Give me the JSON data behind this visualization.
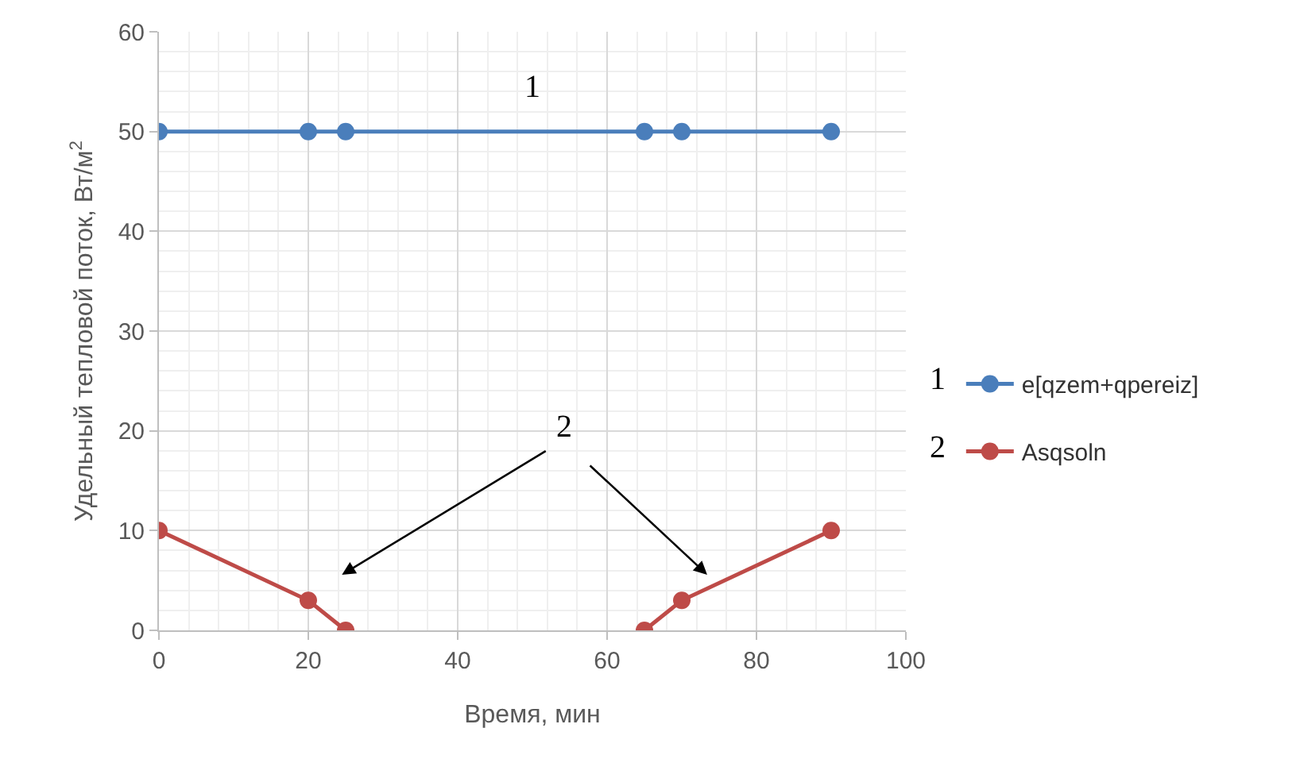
{
  "chart_data": {
    "type": "line",
    "xlabel": "Время, мин",
    "ylabel": "Удельный тепловой поток, Вт/м$^{2}$",
    "xlim": [
      0,
      100
    ],
    "xticks": [
      0,
      20,
      40,
      60,
      80,
      100
    ],
    "ylim": [
      0,
      60
    ],
    "yticks": [
      0,
      10,
      20,
      30,
      40,
      50,
      60
    ],
    "grid": true,
    "legend": "right",
    "marker": "circle",
    "line_style": "solid",
    "series": [
      {
        "name": "e[qzem+qpereiz]",
        "color": "#4a7ebb",
        "x": [
          0,
          20,
          25,
          65,
          70,
          90
        ],
        "values": [
          50,
          50,
          50,
          50,
          50,
          50
        ]
      },
      {
        "name": "Asqsoln",
        "color": "#be4b48",
        "x": [
          0,
          20,
          25,
          45,
          65,
          70,
          90
        ],
        "values": [
          10,
          3,
          0,
          null,
          0,
          3,
          10
        ]
      }
    ],
    "annotations": [
      "1",
      "2",
      "1",
      "2"
    ]
  }
}
